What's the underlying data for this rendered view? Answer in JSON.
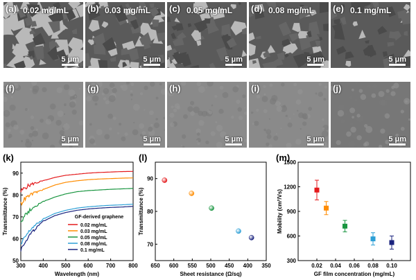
{
  "panels_top": [
    {
      "label": "(a)",
      "conc": "0.02 mg/mL",
      "scale": "5 μm",
      "coverage": "low"
    },
    {
      "label": "(b)",
      "conc": "0.03 mg/mL",
      "scale": "5 μm",
      "coverage": "mid"
    },
    {
      "label": "(c)",
      "conc": "0.05 mg/mL",
      "scale": "5 μm",
      "coverage": "high"
    },
    {
      "label": "(d)",
      "conc": "0.08 mg/mL",
      "scale": "5 μm",
      "coverage": "high"
    },
    {
      "label": "(e)",
      "conc": "0.1 mg/mL",
      "scale": "5 μm",
      "coverage": "full"
    }
  ],
  "panels_bottom": [
    {
      "label": "(f)",
      "scale": "5 μm"
    },
    {
      "label": "(g)",
      "scale": "5 μm"
    },
    {
      "label": "(h)",
      "scale": "5 μm"
    },
    {
      "label": "(i)",
      "scale": "5 μm"
    },
    {
      "label": "(j)",
      "scale": "5 μm"
    }
  ],
  "chart_data": [
    {
      "panel": "(k)",
      "type": "line",
      "xlabel": "Wavelength (nm)",
      "ylabel": "Transmittance (%)",
      "xlim": [
        300,
        800
      ],
      "ylim": [
        50,
        95
      ],
      "xticks": [
        300,
        400,
        500,
        600,
        700,
        800
      ],
      "yticks": [
        50,
        60,
        70,
        80,
        90
      ],
      "legend_title": "GF-derived graphene",
      "legend_position": "bottom-right",
      "series": [
        {
          "name": "0.02 mg/mL",
          "color": "#e41a1c",
          "x": [
            300,
            320,
            350,
            400,
            450,
            500,
            550,
            600,
            650,
            700,
            750,
            800
          ],
          "y": [
            81.5,
            83.5,
            85,
            86.5,
            88,
            89,
            89.5,
            90,
            90.3,
            90.5,
            90.7,
            90.8
          ]
        },
        {
          "name": "0.03 mg/mL",
          "color": "#ff8c00",
          "x": [
            300,
            320,
            350,
            400,
            450,
            500,
            550,
            600,
            650,
            700,
            750,
            800
          ],
          "y": [
            76,
            78.5,
            80.5,
            82.5,
            84.5,
            85.8,
            86.5,
            87,
            87.3,
            87.5,
            87.7,
            87.8
          ]
        },
        {
          "name": "0.05 mg/mL",
          "color": "#1a9641",
          "x": [
            300,
            320,
            350,
            400,
            450,
            500,
            550,
            600,
            650,
            700,
            750,
            800
          ],
          "y": [
            68,
            71,
            74,
            77,
            79,
            80.5,
            81.5,
            82,
            82.3,
            82.6,
            82.8,
            83
          ]
        },
        {
          "name": "0.08 mg/mL",
          "color": "#2c9fd6",
          "x": [
            300,
            320,
            350,
            400,
            450,
            500,
            550,
            600,
            650,
            700,
            750,
            800
          ],
          "y": [
            57,
            61,
            65,
            69,
            71.5,
            73,
            74,
            74.6,
            75,
            75.3,
            75.5,
            75.8
          ]
        },
        {
          "name": "0.1 mg/mL",
          "color": "#1a237e",
          "x": [
            300,
            320,
            350,
            400,
            450,
            500,
            550,
            600,
            650,
            700,
            750,
            800
          ],
          "y": [
            55,
            59,
            63,
            68,
            70.5,
            72,
            73,
            73.6,
            74,
            74.3,
            74.5,
            74.8
          ]
        }
      ]
    },
    {
      "panel": "(l)",
      "type": "scatter",
      "xlabel": "Sheet resistance (Ω/sq)",
      "ylabel": "Transmittance (%)",
      "xlim": [
        650,
        350
      ],
      "ylim": [
        65,
        95
      ],
      "xticks": [
        650,
        600,
        550,
        500,
        450,
        400,
        350
      ],
      "yticks": [
        70,
        80,
        90
      ],
      "series": [
        {
          "color": "#e41a1c",
          "x": 625,
          "y": 89.5
        },
        {
          "color": "#ff8c00",
          "x": 552,
          "y": 85.5
        },
        {
          "color": "#1a9641",
          "x": 498,
          "y": 81
        },
        {
          "color": "#2c9fd6",
          "x": 425,
          "y": 74
        },
        {
          "color": "#1a237e",
          "x": 390,
          "y": 72
        }
      ]
    },
    {
      "panel": "(m)",
      "type": "scatter",
      "xlabel": "GF film concentration (mg/mL)",
      "ylabel": "Mobility (cm²/Vs)",
      "xlim": [
        0.0,
        0.12
      ],
      "ylim": [
        300,
        1500
      ],
      "xticks": [
        "0.02",
        "0.04",
        "0.06",
        "0.08",
        "0.10"
      ],
      "yticks": [
        300,
        600,
        900,
        1200,
        1500
      ],
      "series": [
        {
          "color": "#e41a1c",
          "x": 0.02,
          "y": 1160,
          "err": 120
        },
        {
          "color": "#ff8c00",
          "x": 0.03,
          "y": 940,
          "err": 80
        },
        {
          "color": "#1a9641",
          "x": 0.05,
          "y": 720,
          "err": 70
        },
        {
          "color": "#2c9fd6",
          "x": 0.08,
          "y": 565,
          "err": 75
        },
        {
          "color": "#1a237e",
          "x": 0.1,
          "y": 520,
          "err": 80
        }
      ]
    }
  ]
}
